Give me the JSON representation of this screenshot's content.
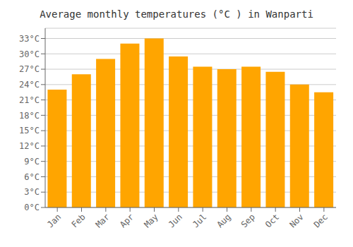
{
  "chart_data": {
    "type": "bar",
    "title": "Average monthly temperatures (°C ) in Wanparti",
    "categories": [
      "Jan",
      "Feb",
      "Mar",
      "Apr",
      "May",
      "Jun",
      "Jul",
      "Aug",
      "Sep",
      "Oct",
      "Nov",
      "Dec"
    ],
    "values": [
      23.0,
      26.0,
      29.0,
      32.0,
      33.0,
      29.5,
      27.5,
      27.0,
      27.5,
      26.5,
      24.0,
      22.5
    ],
    "color": "#FFA500",
    "ylim": [
      0,
      35
    ],
    "yticks": [
      {
        "value": 0,
        "label": "0°C"
      },
      {
        "value": 3,
        "label": "3°C"
      },
      {
        "value": 6,
        "label": "6°C"
      },
      {
        "value": 9,
        "label": "9°C"
      },
      {
        "value": 12,
        "label": "12°C"
      },
      {
        "value": 15,
        "label": "15°C"
      },
      {
        "value": 18,
        "label": "18°C"
      },
      {
        "value": 21,
        "label": "21°C"
      },
      {
        "value": 24,
        "label": "24°C"
      },
      {
        "value": 27,
        "label": "27°C"
      },
      {
        "value": 30,
        "label": "30°C"
      },
      {
        "value": 33,
        "label": "33°C"
      }
    ],
    "grid": true
  }
}
